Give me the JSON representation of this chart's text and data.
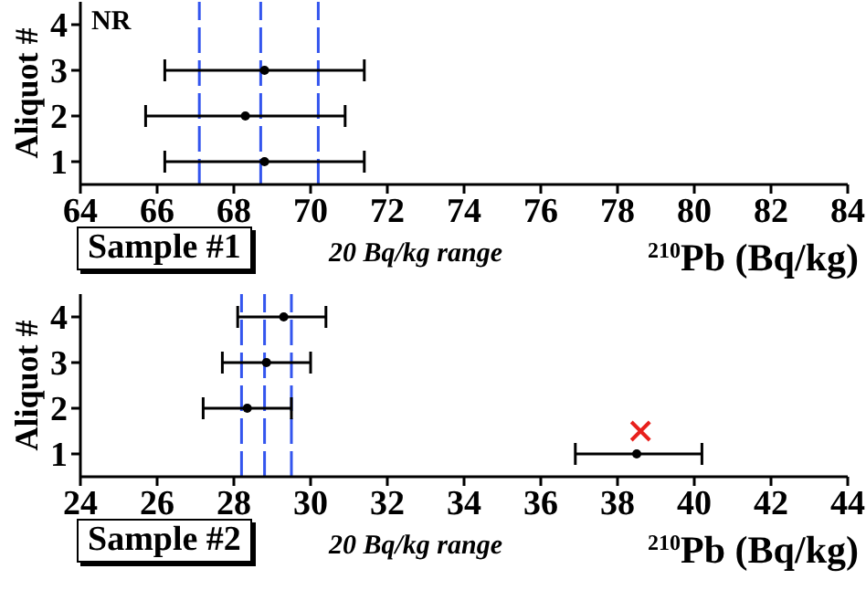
{
  "chart_data": [
    {
      "type": "scatter",
      "xlabel": "$^{210}$Pb (Bq/kg)",
      "ylabel": "Aliquot #",
      "xlim": [
        64,
        84
      ],
      "xticks": [
        64,
        66,
        68,
        70,
        72,
        74,
        76,
        78,
        80,
        82,
        84
      ],
      "ylim": [
        0.5,
        4.5
      ],
      "yticks": [
        1,
        2,
        3,
        4
      ],
      "series": [
        {
          "color": "#000000",
          "marker": "circle",
          "x": [
            68.8,
            68.3,
            68.8
          ],
          "values": [
            1,
            2,
            3
          ],
          "xerrors": [
            [
              66.2,
              71.4
            ],
            [
              65.7,
              70.9
            ],
            [
              66.2,
              71.4
            ]
          ]
        }
      ],
      "ref_lines": [
        {
          "axis": "x",
          "value": 67.1,
          "color": "#3355ee",
          "line_style": "dashed"
        },
        {
          "axis": "x",
          "value": 68.7,
          "color": "#3355ee",
          "line_style": "dashed"
        },
        {
          "axis": "x",
          "value": 70.2,
          "color": "#3355ee",
          "line_style": "dashed"
        }
      ],
      "annotations": [
        "NR",
        "Sample #1",
        "20 Bq/kg range"
      ]
    },
    {
      "type": "scatter",
      "xlabel": "$^{210}$Pb (Bq/kg)",
      "ylabel": "Aliquot #",
      "xlim": [
        24,
        44
      ],
      "xticks": [
        24,
        26,
        28,
        30,
        32,
        34,
        36,
        38,
        40,
        42,
        44
      ],
      "ylim": [
        0.5,
        4.5
      ],
      "yticks": [
        1,
        2,
        3,
        4
      ],
      "series": [
        {
          "color": "#000000",
          "marker": "circle",
          "x": [
            38.5,
            28.35,
            28.85,
            29.3
          ],
          "values": [
            1,
            2,
            3,
            4
          ],
          "xerrors": [
            [
              36.9,
              40.2
            ],
            [
              27.2,
              29.5
            ],
            [
              27.7,
              30.0
            ],
            [
              28.1,
              30.4
            ]
          ]
        },
        {
          "color": "#e8201c",
          "marker": "cross",
          "x": [
            38.6
          ],
          "values": [
            1.5
          ]
        }
      ],
      "ref_lines": [
        {
          "axis": "x",
          "value": 28.2,
          "color": "#3355ee",
          "line_style": "dashed"
        },
        {
          "axis": "x",
          "value": 28.8,
          "color": "#3355ee",
          "line_style": "dashed"
        },
        {
          "axis": "x",
          "value": 29.5,
          "color": "#3355ee",
          "line_style": "dashed"
        }
      ],
      "annotations": [
        "Sample #2",
        "20 Bq/kg range"
      ]
    }
  ]
}
